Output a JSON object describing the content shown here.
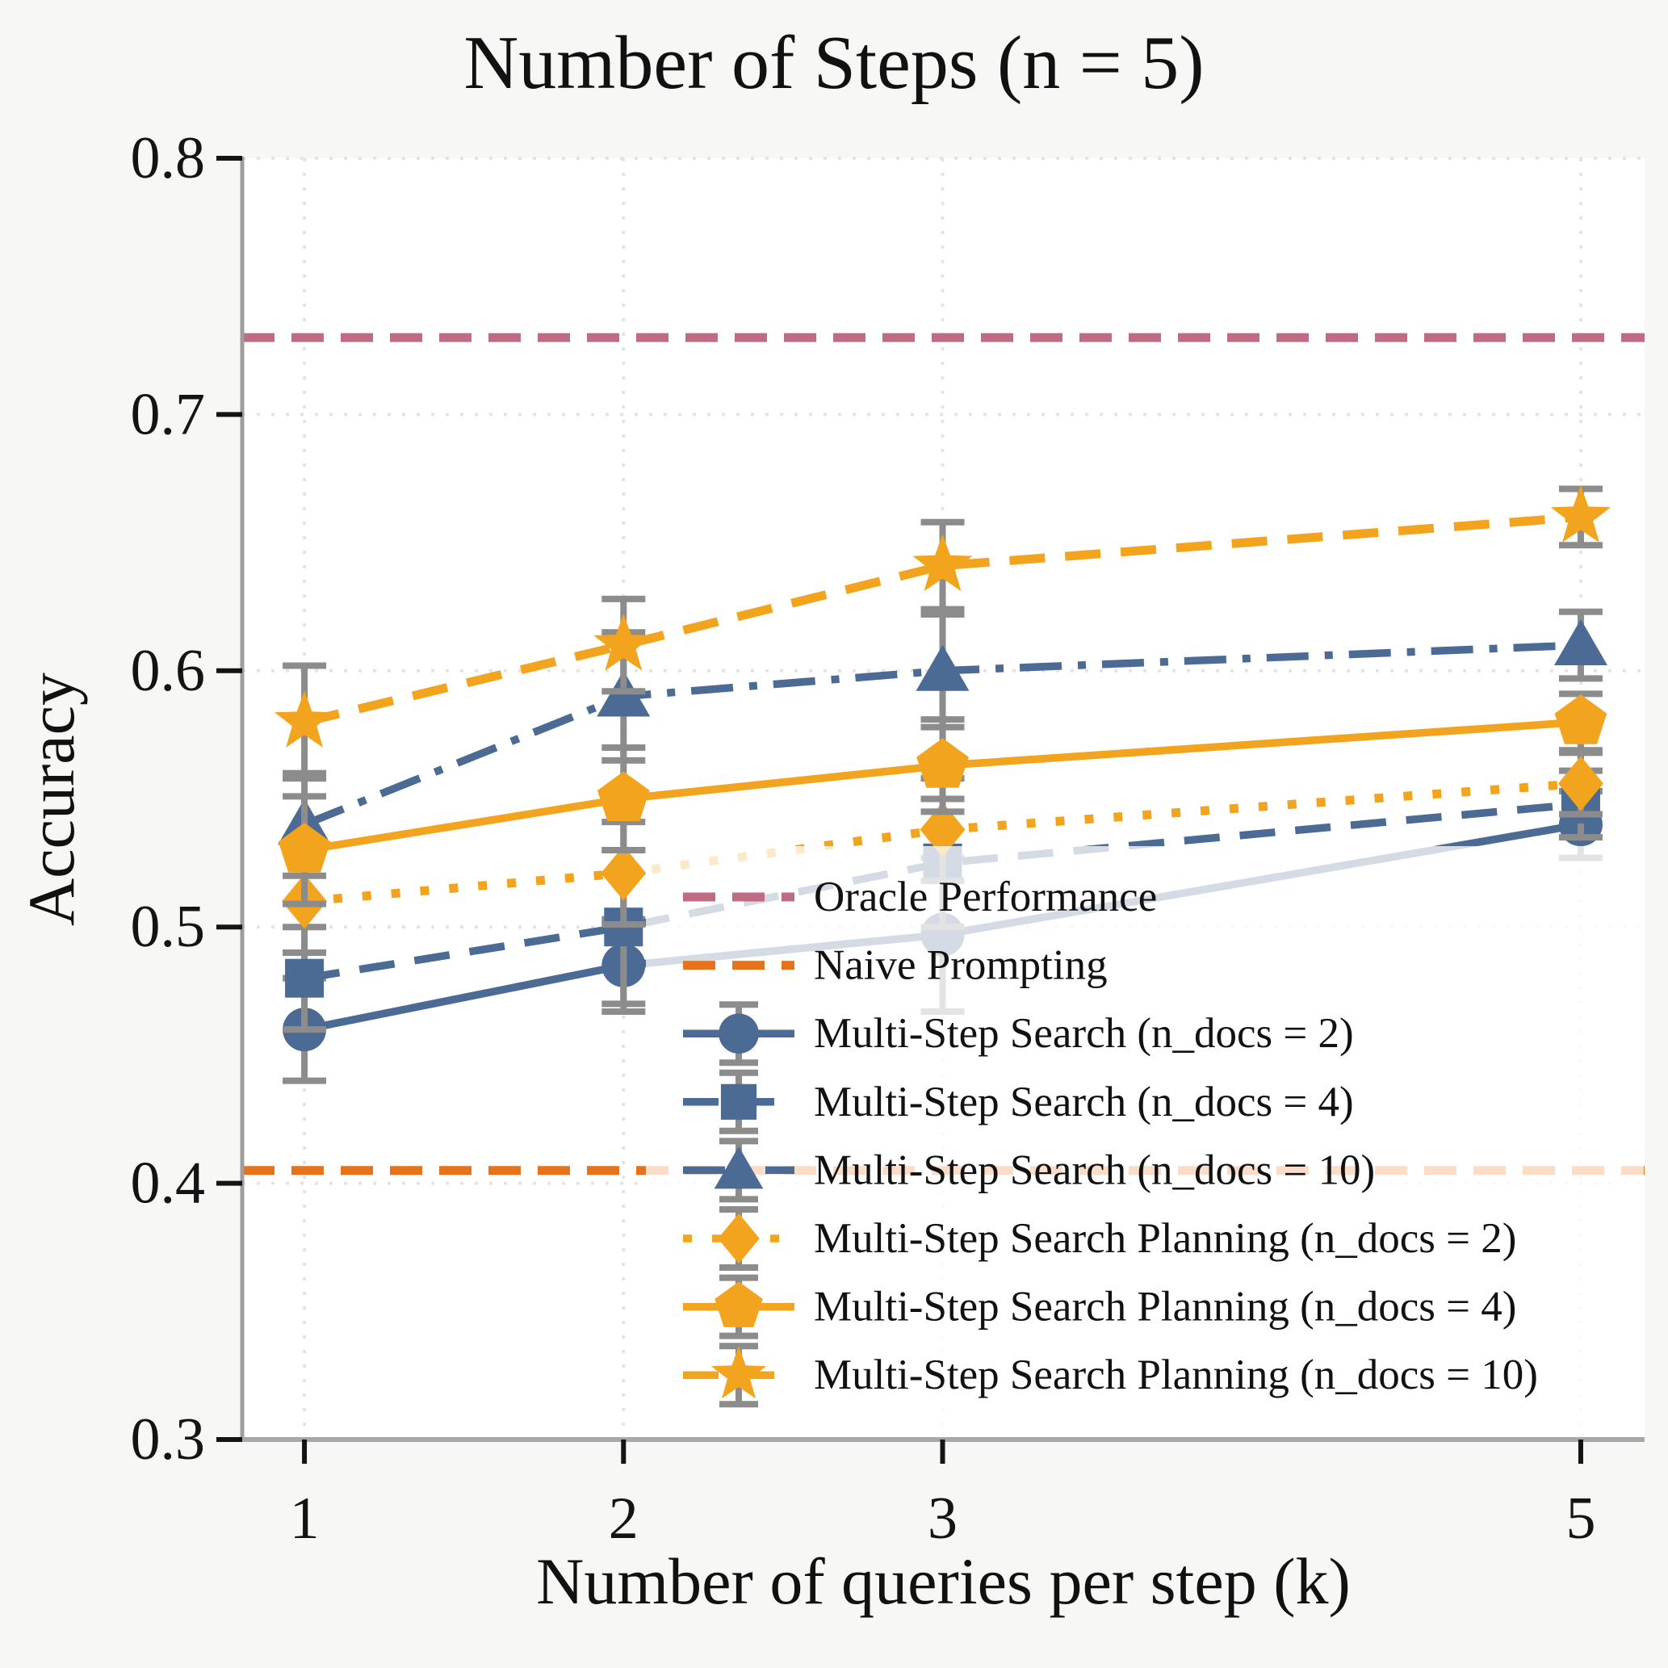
{
  "chart_data": {
    "type": "line",
    "title": "Number of Steps (n = 5)",
    "xlabel": "Number of queries per step (k)",
    "ylabel": "Accuracy",
    "x": [
      1,
      2,
      3,
      5
    ],
    "xlim": [
      0.805,
      5.2
    ],
    "ylim": [
      0.3,
      0.8
    ],
    "grid": true,
    "xticks": [
      1,
      2,
      3,
      5
    ],
    "xtick_labels": [
      "1",
      "2",
      "3",
      "5"
    ],
    "yticks": [
      0.8,
      0.7,
      0.6,
      0.5,
      0.4,
      0.3
    ],
    "ytick_labels": [
      "0.8",
      "0.7",
      "0.6",
      "0.5",
      "0.4",
      "0.3"
    ],
    "legend_position": "lower right",
    "baselines": [
      {
        "name": "Oracle Performance",
        "value": 0.73,
        "color": "#C06A84",
        "style": "dashed"
      },
      {
        "name": "Naive Prompting",
        "value": 0.405,
        "color": "#E5731C",
        "style": "dashed"
      }
    ],
    "series": [
      {
        "name": "Multi-Step Search (n_docs = 2)",
        "color": "#4B6A94",
        "style": "solid",
        "marker": "circle",
        "values": [
          0.46,
          0.485,
          0.497,
          0.54
        ],
        "errors": [
          0.02,
          0.018,
          0.03,
          0.013
        ]
      },
      {
        "name": "Multi-Step Search (n_docs = 4)",
        "color": "#4B6A94",
        "style": "dashed",
        "marker": "square",
        "values": [
          0.48,
          0.5,
          0.525,
          0.548
        ],
        "errors": [
          0.02,
          0.03,
          0.025,
          0.013
        ]
      },
      {
        "name": "Multi-Step Search (n_docs = 10)",
        "color": "#4B6A94",
        "style": "dashdot",
        "marker": "triangle",
        "values": [
          0.54,
          0.59,
          0.6,
          0.61
        ],
        "errors": [
          0.02,
          0.025,
          0.022,
          0.013
        ]
      },
      {
        "name": "Multi-Step Search Planning (n_docs = 2)",
        "color": "#F3A41E",
        "style": "dotted",
        "marker": "diamond",
        "values": [
          0.51,
          0.521,
          0.538,
          0.556
        ],
        "errors": [
          0.02,
          0.02,
          0.02,
          0.012
        ]
      },
      {
        "name": "Multi-Step Search Planning (n_docs = 4)",
        "color": "#F3A41E",
        "style": "solid",
        "marker": "pentagon",
        "values": [
          0.53,
          0.55,
          0.563,
          0.58
        ],
        "errors": [
          0.021,
          0.02,
          0.018,
          0.011
        ]
      },
      {
        "name": "Multi-Step Search Planning (n_docs = 10)",
        "color": "#F3A41E",
        "style": "dashed",
        "marker": "star",
        "values": [
          0.58,
          0.61,
          0.641,
          0.66
        ],
        "errors": [
          0.022,
          0.018,
          0.017,
          0.011
        ]
      }
    ],
    "errorbar_color": "#8C8C8C",
    "grid_color": "#E4E4E4",
    "spine_color": "#A8A8A8",
    "plot_background": "#FFFFFF",
    "figure_background": "#F7F7F5",
    "legend_background_alpha": 0.76
  }
}
